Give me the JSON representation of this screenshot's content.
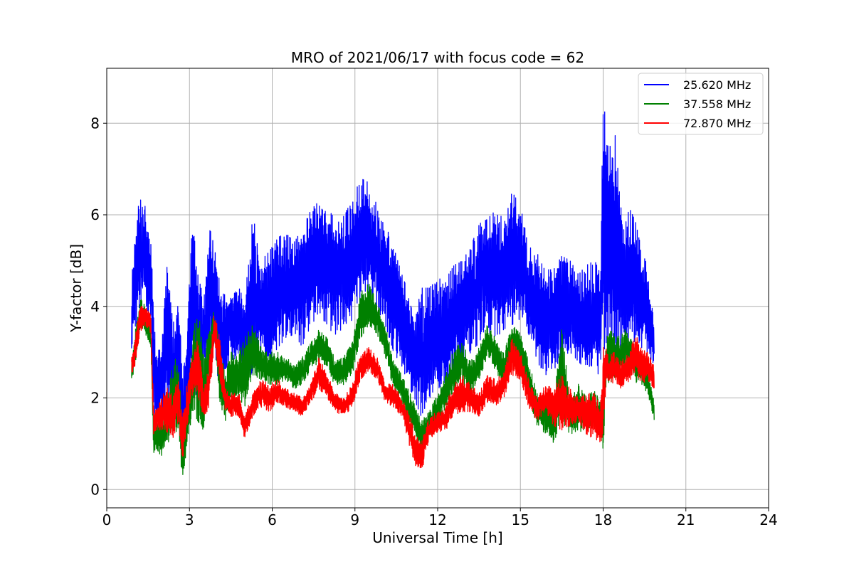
{
  "chart_data": {
    "type": "line",
    "title": "MRO of 2021/06/17 with focus code = 62",
    "xlabel": "Universal Time [h]",
    "ylabel": "Y-factor [dB]",
    "xlim": [
      0,
      24
    ],
    "ylim": [
      -0.4,
      9.2
    ],
    "xticks": [
      0,
      3,
      6,
      9,
      12,
      15,
      18,
      21,
      24
    ],
    "yticks": [
      0,
      2,
      4,
      6,
      8
    ],
    "grid": true,
    "legend_position": "top-right",
    "series": [
      {
        "name": "25.620 MHz",
        "color": "#0000ff",
        "x": [
          0.9,
          1.0,
          1.2,
          1.4,
          1.6,
          1.7,
          1.8,
          2.0,
          2.2,
          2.4,
          2.6,
          2.75,
          2.9,
          3.1,
          3.3,
          3.5,
          3.7,
          3.9,
          4.1,
          4.3,
          4.5,
          4.8,
          5.0,
          5.3,
          5.6,
          5.9,
          6.2,
          6.5,
          6.8,
          7.1,
          7.4,
          7.7,
          8.0,
          8.3,
          8.6,
          8.9,
          9.2,
          9.5,
          9.8,
          10.1,
          10.4,
          10.7,
          11.0,
          11.2,
          11.4,
          11.7,
          12.0,
          12.3,
          12.6,
          12.9,
          13.2,
          13.5,
          13.8,
          14.1,
          14.4,
          14.7,
          15.0,
          15.3,
          15.6,
          15.9,
          16.2,
          16.5,
          16.8,
          17.1,
          17.4,
          17.7,
          17.9,
          18.0,
          18.1,
          18.2,
          18.4,
          18.6,
          18.8,
          19.0,
          19.2,
          19.4,
          19.6,
          19.85
        ],
        "low": [
          3.0,
          3.4,
          4.0,
          4.1,
          3.6,
          1.5,
          1.2,
          1.8,
          1.4,
          1.3,
          1.8,
          0.4,
          1.3,
          2.2,
          1.6,
          2.2,
          2.8,
          3.2,
          2.0,
          2.5,
          2.7,
          3.0,
          2.2,
          2.6,
          2.9,
          2.8,
          3.1,
          3.3,
          3.4,
          3.1,
          3.6,
          3.8,
          3.6,
          3.3,
          3.6,
          3.7,
          4.1,
          4.3,
          3.9,
          3.6,
          3.0,
          2.7,
          2.2,
          1.9,
          1.6,
          2.0,
          2.2,
          2.3,
          2.4,
          2.7,
          3.0,
          3.2,
          3.4,
          3.3,
          3.5,
          3.6,
          3.7,
          3.4,
          2.8,
          2.5,
          2.6,
          2.9,
          3.0,
          2.8,
          2.6,
          2.7,
          2.4,
          2.9,
          3.2,
          3.3,
          3.0,
          3.1,
          3.0,
          3.1,
          3.3,
          3.1,
          3.0,
          2.7
        ],
        "high": [
          4.6,
          5.3,
          6.5,
          6.2,
          5.6,
          3.8,
          3.0,
          3.3,
          5.0,
          3.6,
          4.3,
          2.5,
          3.2,
          6.0,
          4.7,
          4.2,
          5.8,
          5.3,
          4.5,
          4.3,
          4.2,
          4.4,
          4.1,
          6.0,
          5.0,
          5.2,
          5.5,
          5.6,
          5.4,
          5.7,
          6.1,
          6.3,
          6.0,
          6.1,
          6.0,
          6.3,
          6.8,
          6.7,
          6.2,
          5.8,
          5.3,
          4.7,
          4.2,
          4.0,
          4.4,
          4.4,
          4.6,
          4.6,
          4.9,
          5.0,
          5.3,
          5.8,
          5.9,
          6.1,
          5.9,
          6.5,
          6.2,
          5.3,
          5.2,
          4.8,
          4.8,
          5.1,
          5.0,
          4.7,
          4.9,
          5.0,
          4.7,
          8.5,
          8.7,
          7.5,
          8.0,
          6.5,
          6.0,
          6.1,
          5.8,
          5.2,
          4.9,
          3.6
        ]
      },
      {
        "name": "37.558 MHz",
        "color": "#008000",
        "x": [
          0.9,
          1.0,
          1.2,
          1.4,
          1.6,
          1.7,
          1.8,
          2.0,
          2.2,
          2.4,
          2.6,
          2.75,
          2.9,
          3.1,
          3.3,
          3.5,
          3.7,
          3.9,
          4.1,
          4.3,
          4.5,
          4.8,
          5.0,
          5.3,
          5.6,
          5.9,
          6.2,
          6.5,
          6.8,
          7.1,
          7.4,
          7.7,
          8.0,
          8.3,
          8.6,
          8.9,
          9.2,
          9.5,
          9.8,
          10.1,
          10.4,
          10.7,
          11.0,
          11.2,
          11.4,
          11.7,
          12.0,
          12.3,
          12.6,
          12.9,
          13.2,
          13.5,
          13.8,
          14.1,
          14.4,
          14.7,
          15.0,
          15.3,
          15.6,
          15.9,
          16.2,
          16.5,
          16.8,
          17.1,
          17.4,
          17.7,
          17.9,
          18.0,
          18.1,
          18.2,
          18.4,
          18.6,
          18.8,
          19.0,
          19.2,
          19.4,
          19.6,
          19.85
        ],
        "low": [
          2.3,
          2.6,
          3.5,
          3.4,
          3.0,
          0.8,
          0.9,
          0.7,
          1.0,
          1.2,
          1.3,
          0.1,
          0.8,
          1.7,
          1.5,
          1.3,
          2.0,
          3.3,
          1.7,
          1.5,
          1.9,
          2.0,
          1.8,
          2.5,
          2.4,
          2.3,
          2.3,
          2.4,
          2.2,
          2.3,
          2.6,
          2.8,
          2.7,
          2.2,
          2.3,
          2.5,
          3.3,
          3.6,
          3.4,
          2.9,
          2.2,
          1.9,
          1.4,
          1.2,
          0.8,
          1.1,
          1.4,
          1.8,
          2.2,
          2.3,
          2.0,
          2.4,
          2.9,
          2.6,
          2.2,
          2.9,
          2.7,
          2.0,
          1.4,
          1.2,
          1.0,
          1.5,
          1.2,
          1.3,
          1.2,
          1.4,
          1.2,
          0.8,
          2.2,
          2.3,
          2.4,
          2.5,
          2.6,
          2.8,
          2.3,
          2.3,
          2.1,
          1.5
        ],
        "high": [
          2.9,
          3.3,
          4.2,
          4.0,
          3.6,
          1.5,
          1.5,
          1.5,
          2.0,
          2.8,
          2.9,
          1.4,
          2.0,
          3.2,
          4.1,
          2.9,
          3.7,
          3.9,
          3.2,
          2.5,
          3.0,
          3.0,
          3.3,
          3.6,
          3.1,
          3.0,
          3.0,
          2.9,
          2.7,
          2.9,
          3.2,
          3.5,
          3.3,
          2.8,
          2.9,
          3.2,
          4.3,
          4.5,
          4.1,
          3.6,
          2.8,
          2.5,
          2.1,
          1.8,
          1.5,
          1.7,
          2.1,
          2.5,
          3.1,
          3.2,
          2.8,
          3.1,
          3.6,
          3.3,
          3.0,
          3.6,
          3.4,
          2.8,
          2.1,
          2.0,
          1.9,
          3.5,
          2.0,
          2.3,
          2.0,
          2.2,
          2.0,
          2.0,
          3.3,
          3.4,
          3.6,
          3.3,
          3.5,
          3.3,
          2.9,
          2.9,
          2.7,
          1.9
        ]
      },
      {
        "name": "72.870 MHz",
        "color": "#ff0000",
        "x": [
          0.9,
          1.0,
          1.2,
          1.4,
          1.6,
          1.7,
          1.8,
          2.0,
          2.2,
          2.4,
          2.6,
          2.75,
          2.9,
          3.1,
          3.3,
          3.5,
          3.7,
          3.9,
          4.1,
          4.3,
          4.5,
          4.8,
          5.0,
          5.3,
          5.6,
          5.9,
          6.2,
          6.5,
          6.8,
          7.1,
          7.4,
          7.7,
          8.0,
          8.3,
          8.6,
          8.9,
          9.2,
          9.5,
          9.8,
          10.1,
          10.4,
          10.7,
          11.0,
          11.2,
          11.4,
          11.7,
          12.0,
          12.3,
          12.6,
          12.9,
          13.2,
          13.5,
          13.8,
          14.1,
          14.4,
          14.7,
          15.0,
          15.3,
          15.6,
          15.9,
          16.2,
          16.5,
          16.8,
          17.1,
          17.4,
          17.7,
          17.9,
          18.0,
          18.1,
          18.2,
          18.4,
          18.6,
          18.8,
          19.0,
          19.2,
          19.4,
          19.6,
          19.85
        ],
        "low": [
          2.5,
          2.6,
          3.4,
          3.6,
          3.3,
          1.2,
          1.3,
          1.3,
          1.2,
          1.1,
          1.5,
          0.6,
          1.3,
          2.0,
          2.1,
          1.5,
          1.8,
          3.1,
          2.4,
          1.7,
          1.6,
          1.6,
          1.1,
          1.6,
          1.8,
          1.7,
          1.9,
          1.8,
          1.7,
          1.6,
          1.9,
          2.2,
          2.0,
          1.7,
          1.6,
          1.8,
          2.4,
          2.6,
          2.4,
          1.9,
          1.8,
          1.6,
          0.9,
          0.5,
          0.3,
          1.1,
          1.2,
          1.3,
          1.6,
          1.7,
          1.7,
          1.6,
          1.9,
          1.8,
          2.0,
          2.5,
          2.4,
          1.8,
          1.5,
          1.7,
          1.4,
          1.3,
          1.4,
          1.5,
          1.2,
          1.1,
          0.9,
          1.0,
          2.3,
          2.4,
          2.3,
          2.2,
          2.3,
          2.4,
          2.5,
          2.3,
          2.4,
          2.2
        ],
        "high": [
          3.0,
          3.2,
          4.0,
          4.0,
          3.8,
          1.8,
          1.8,
          2.0,
          2.3,
          2.0,
          2.5,
          1.6,
          2.3,
          2.9,
          3.5,
          2.2,
          2.7,
          3.9,
          3.3,
          2.2,
          2.1,
          2.1,
          1.6,
          2.1,
          2.4,
          2.3,
          2.4,
          2.2,
          2.1,
          2.0,
          2.3,
          2.9,
          2.5,
          2.1,
          2.0,
          2.3,
          3.0,
          3.1,
          2.9,
          2.3,
          2.3,
          2.0,
          1.6,
          1.2,
          1.0,
          1.6,
          1.7,
          1.9,
          2.3,
          2.5,
          2.3,
          2.1,
          2.5,
          2.4,
          2.6,
          3.3,
          3.0,
          2.4,
          2.0,
          2.3,
          2.2,
          2.5,
          2.2,
          2.0,
          2.1,
          2.1,
          1.8,
          3.1,
          3.1,
          2.9,
          3.0,
          2.8,
          2.9,
          3.1,
          3.4,
          3.1,
          3.0,
          2.7
        ]
      }
    ]
  }
}
